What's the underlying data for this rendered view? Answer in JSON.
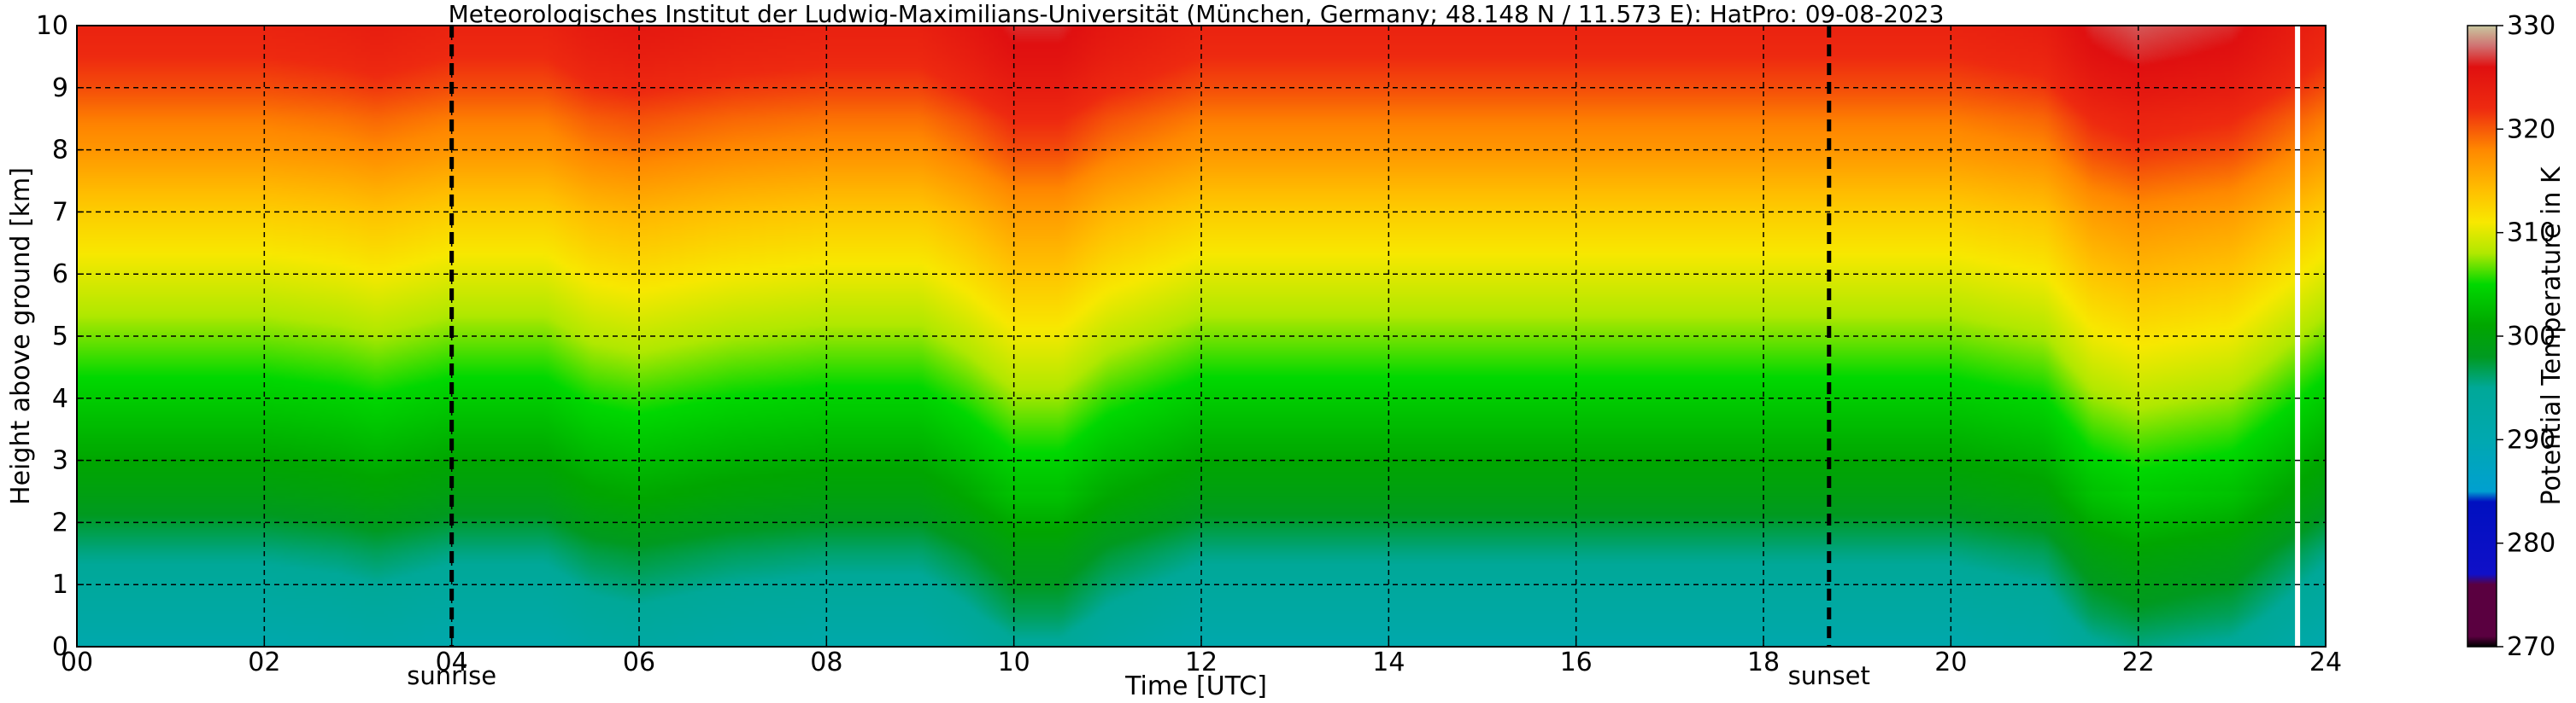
{
  "chart_data": {
    "type": "heatmap",
    "title": "Meteorologisches Institut der Ludwig-Maximilians-Universität (München, Germany; 48.148 N / 11.573 E):    HatPro: 09-08-2023",
    "xlabel": "Time [UTC]",
    "ylabel": "Height above ground [km]",
    "xlim": [
      0,
      24
    ],
    "ylim": [
      0,
      10
    ],
    "x_ticks": [
      "00",
      "02",
      "04",
      "06",
      "08",
      "10",
      "12",
      "14",
      "16",
      "18",
      "20",
      "22",
      "24"
    ],
    "y_ticks": [
      "0",
      "1",
      "2",
      "3",
      "4",
      "5",
      "6",
      "7",
      "8",
      "9",
      "10"
    ],
    "grid": true,
    "colorbar": {
      "label": "Potential Temperature in K",
      "range": [
        270,
        330
      ],
      "ticks": [
        "270",
        "280",
        "290",
        "300",
        "310",
        "320",
        "330"
      ],
      "stops": [
        {
          "value": 270,
          "color": "#000000"
        },
        {
          "value": 271,
          "color": "#5a0040"
        },
        {
          "value": 276,
          "color": "#5a0040"
        },
        {
          "value": 277,
          "color": "#1010c8"
        },
        {
          "value": 284,
          "color": "#0010c0"
        },
        {
          "value": 285,
          "color": "#00a0d0"
        },
        {
          "value": 290,
          "color": "#00a8b0"
        },
        {
          "value": 295,
          "color": "#00a898"
        },
        {
          "value": 298,
          "color": "#009a20"
        },
        {
          "value": 301,
          "color": "#00a600"
        },
        {
          "value": 305,
          "color": "#00d800"
        },
        {
          "value": 308,
          "color": "#b0e800"
        },
        {
          "value": 311,
          "color": "#f8e800"
        },
        {
          "value": 314,
          "color": "#ffc000"
        },
        {
          "value": 318,
          "color": "#ff8800"
        },
        {
          "value": 322,
          "color": "#ee2a10"
        },
        {
          "value": 326,
          "color": "#e01010"
        },
        {
          "value": 328,
          "color": "#d07070"
        },
        {
          "value": 330,
          "color": "#c8c8a0"
        }
      ]
    },
    "field": {
      "description_keys": "mean potential temperature (K) per height; per-time warm/cool anomaly column",
      "heights_km": [
        0,
        0.5,
        1,
        1.5,
        2,
        2.5,
        3,
        3.5,
        4,
        4.5,
        5,
        5.5,
        6,
        6.5,
        7,
        7.5,
        8,
        8.5,
        9,
        9.5,
        10
      ],
      "theta_profile_K": [
        290.5,
        292.5,
        294,
        295.5,
        297.5,
        299.5,
        301,
        302.5,
        304,
        305.5,
        307,
        308.5,
        310,
        311.5,
        313,
        315,
        317,
        318.5,
        320.5,
        322,
        323
      ],
      "time_hours": [
        0,
        1,
        2,
        2.8,
        3.2,
        4,
        5,
        5.5,
        6,
        7,
        8,
        9,
        9.5,
        10,
        10.5,
        11,
        12,
        14,
        16,
        18,
        19,
        20,
        21,
        21.5,
        22,
        23,
        23.5,
        24
      ],
      "anomaly_K": [
        0,
        0,
        0,
        0.5,
        1,
        0,
        0,
        1.5,
        2,
        1,
        0.5,
        0.5,
        2,
        4,
        4,
        2,
        0,
        0,
        0,
        0,
        0,
        0,
        1,
        4,
        5,
        4,
        2,
        0
      ]
    },
    "annotations": [
      {
        "x": 4.0,
        "text": "sunrise",
        "style": "dashed-vertical-line"
      },
      {
        "x": 18.7,
        "text": "sunset",
        "style": "dashed-vertical-line"
      }
    ],
    "data_gap": {
      "x": 23.7,
      "color": "#ffffff"
    }
  }
}
